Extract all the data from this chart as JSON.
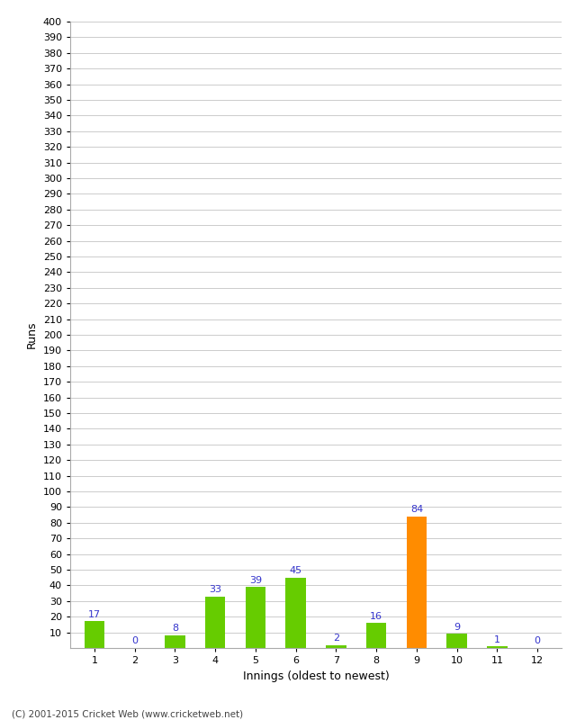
{
  "categories": [
    1,
    2,
    3,
    4,
    5,
    6,
    7,
    8,
    9,
    10,
    11,
    12
  ],
  "values": [
    17,
    0,
    8,
    33,
    39,
    45,
    2,
    16,
    84,
    9,
    1,
    0
  ],
  "bar_colors": [
    "#66cc00",
    "#66cc00",
    "#66cc00",
    "#66cc00",
    "#66cc00",
    "#66cc00",
    "#66cc00",
    "#66cc00",
    "#ff8c00",
    "#66cc00",
    "#66cc00",
    "#66cc00"
  ],
  "xlabel": "Innings (oldest to newest)",
  "ylabel": "Runs",
  "ylim": [
    0,
    400
  ],
  "yticks": [
    10,
    20,
    30,
    40,
    50,
    60,
    70,
    80,
    90,
    100,
    110,
    120,
    130,
    140,
    150,
    160,
    170,
    180,
    190,
    200,
    210,
    220,
    230,
    240,
    250,
    260,
    270,
    280,
    290,
    300,
    310,
    320,
    330,
    340,
    350,
    360,
    370,
    380,
    390,
    400
  ],
  "label_color": "#3333cc",
  "label_fontsize": 8,
  "axis_label_fontsize": 9,
  "tick_fontsize": 8,
  "background_color": "#ffffff",
  "grid_color": "#cccccc",
  "footer_text": "(C) 2001-2015 Cricket Web (www.cricketweb.net)",
  "bar_width": 0.5
}
